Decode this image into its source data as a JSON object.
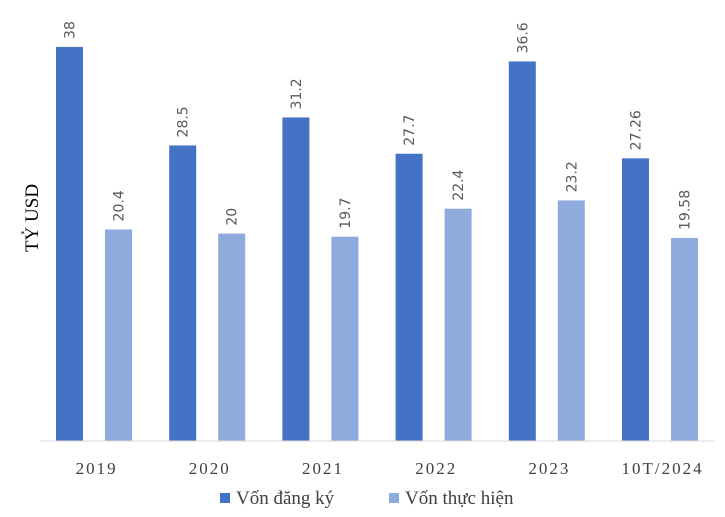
{
  "chart_data": {
    "type": "bar",
    "title": "",
    "xlabel": "",
    "ylabel": "TỶ USD",
    "categories": [
      "2019",
      "2020",
      "2021",
      "2022",
      "2023",
      "10T/2024"
    ],
    "value_labels": [
      [
        "38",
        "28.5",
        "31.2",
        "27.7",
        "36.6",
        "27.26"
      ],
      [
        "20.4",
        "20",
        "19.7",
        "22.4",
        "23.2",
        "19.58"
      ]
    ],
    "series": [
      {
        "name": "Vốn đăng ký",
        "color": "#4472C4",
        "values": [
          38,
          28.5,
          31.2,
          27.7,
          36.6,
          27.26
        ]
      },
      {
        "name": "Vốn thực hiện",
        "color": "#8FAADC",
        "values": [
          20.4,
          20,
          19.7,
          22.4,
          23.2,
          19.58
        ]
      }
    ],
    "ylim": [
      0,
      40
    ],
    "grid": false,
    "legend": "bottom"
  }
}
